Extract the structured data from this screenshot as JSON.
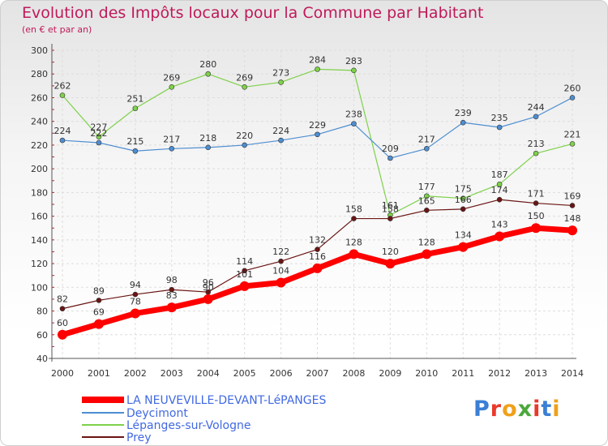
{
  "header": {
    "title": "Evolution des Impôts locaux pour la Commune par Habitant",
    "subtitle": "(en € et par an)"
  },
  "brand": {
    "letters": [
      "P",
      "r",
      "o",
      "x",
      "i",
      "t",
      "i"
    ],
    "colors": [
      "#3a7fd5",
      "#e83a2a",
      "#f0a01a",
      "#4aa83a",
      "#e83a2a",
      "#3a7fd5",
      "#f0a01a"
    ]
  },
  "chart_data": {
    "type": "line",
    "title": "Evolution des Impôts locaux pour la Commune par Habitant",
    "subtitle": "(en € et par an)",
    "x": [
      2000,
      2001,
      2002,
      2003,
      2004,
      2005,
      2006,
      2007,
      2008,
      2009,
      2010,
      2011,
      2012,
      2013,
      2014
    ],
    "xlabel": "",
    "ylabel": "",
    "ylim": [
      40,
      300
    ],
    "yticks": [
      40,
      60,
      80,
      100,
      120,
      140,
      160,
      180,
      200,
      220,
      240,
      260,
      280,
      300
    ],
    "grid": true,
    "legend_position": "bottom-left",
    "series": [
      {
        "name": "LA NEUVEVILLE-DEVANT-LéPANGES",
        "color": "#ff0000",
        "values": [
          60,
          69,
          78,
          83,
          90,
          101,
          104,
          116,
          128,
          120,
          128,
          134,
          143,
          150,
          148
        ]
      },
      {
        "name": "Deycimont",
        "color": "#4d8ed1",
        "values": [
          224,
          222,
          215,
          217,
          218,
          220,
          224,
          229,
          238,
          209,
          217,
          239,
          235,
          244,
          260
        ]
      },
      {
        "name": "Lépanges-sur-Vologne",
        "color": "#7ed14a",
        "values": [
          262,
          227,
          251,
          269,
          280,
          269,
          273,
          284,
          283,
          161,
          177,
          175,
          187,
          213,
          221
        ]
      },
      {
        "name": "Prey",
        "color": "#6b1414",
        "values": [
          82,
          89,
          94,
          98,
          96,
          114,
          122,
          132,
          158,
          158,
          165,
          166,
          174,
          171,
          169
        ]
      }
    ]
  }
}
